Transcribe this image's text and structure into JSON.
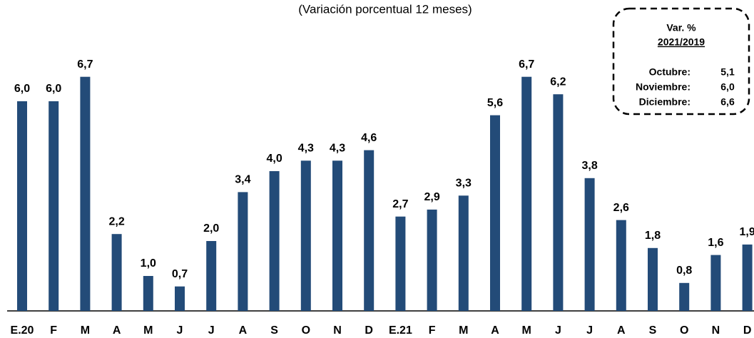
{
  "chart_data": {
    "type": "bar",
    "title": "(Variación porcentual 12 meses)",
    "categories": [
      "E.20",
      "F",
      "M",
      "A",
      "M",
      "J",
      "J",
      "A",
      "S",
      "O",
      "N",
      "D",
      "E.21",
      "F",
      "M",
      "A",
      "M",
      "J",
      "J",
      "A",
      "S",
      "O",
      "N",
      "D"
    ],
    "values": [
      6.0,
      6.0,
      6.7,
      2.2,
      1.0,
      0.7,
      2.0,
      3.4,
      4.0,
      4.3,
      4.3,
      4.6,
      2.7,
      2.9,
      3.3,
      5.6,
      6.7,
      6.2,
      3.8,
      2.6,
      1.8,
      0.8,
      1.6,
      1.9
    ],
    "value_labels": [
      "6,0",
      "6,0",
      "6,7",
      "2,2",
      "1,0",
      "0,7",
      "2,0",
      "3,4",
      "4,0",
      "4,3",
      "4,3",
      "4,6",
      "2,7",
      "2,9",
      "3,3",
      "5,6",
      "6,7",
      "6,2",
      "3,8",
      "2,6",
      "1,8",
      "0,8",
      "1,6",
      "1,9"
    ],
    "color": "#234b78",
    "ylim": [
      0,
      7
    ],
    "annotation": {
      "title": "Var. %",
      "subtitle": "2021/2019",
      "rows": [
        [
          "Octubre:",
          "5,1"
        ],
        [
          "Noviembre:",
          "6,0"
        ],
        [
          "Diciembre:",
          "6,6"
        ]
      ]
    }
  }
}
